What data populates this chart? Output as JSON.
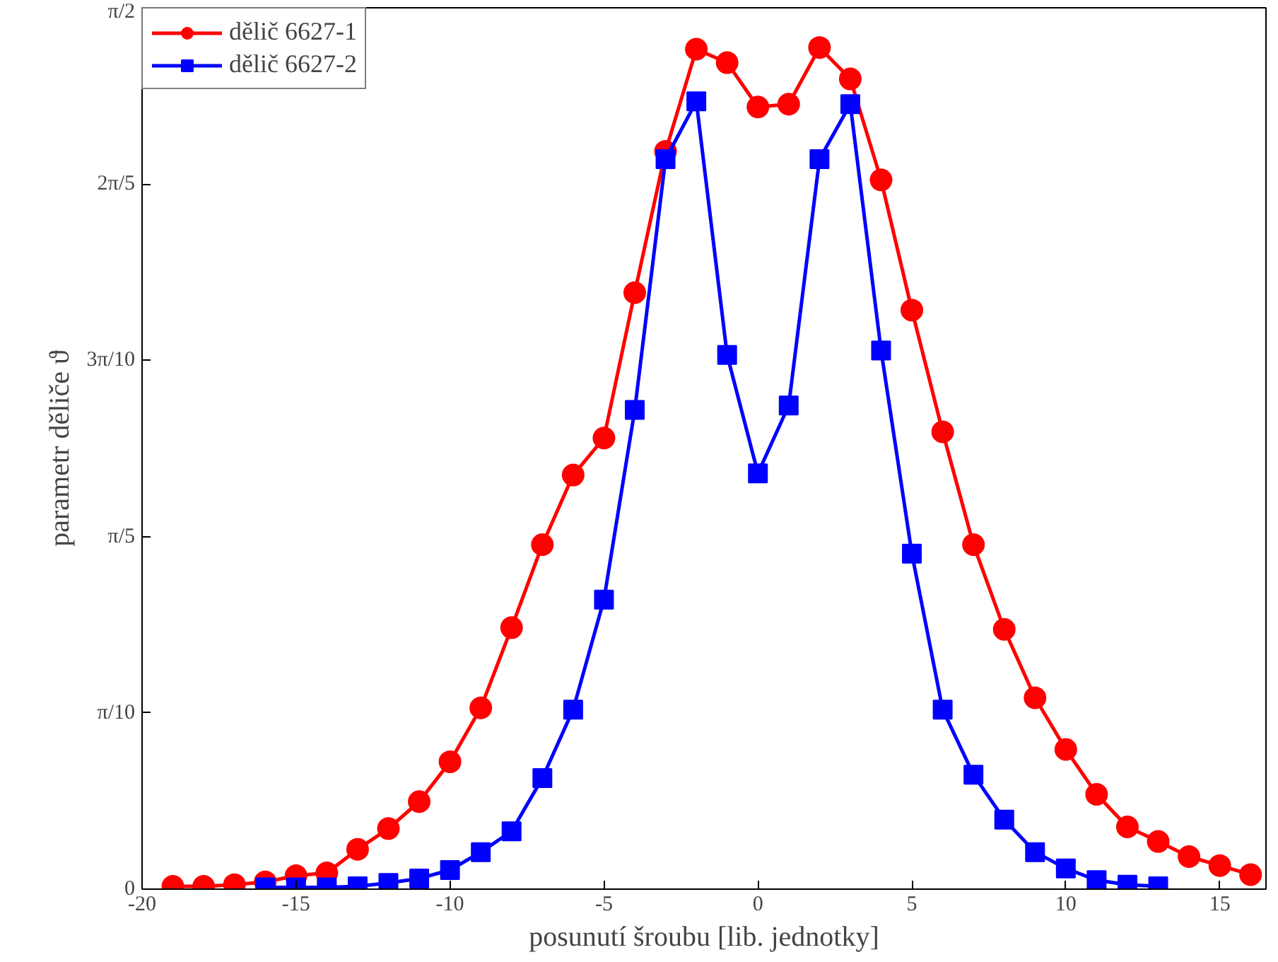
{
  "chart_data": {
    "type": "line",
    "xlabel": "posunutí šroubu [lib. jednotky]",
    "ylabel": "parametr děliče ϑ",
    "xlim": [
      -20,
      16.5
    ],
    "xticks": [
      -20,
      -15,
      -10,
      -5,
      0,
      5,
      10,
      15
    ],
    "ylim": [
      0,
      1.5708
    ],
    "yticks": [
      0,
      {
        "value": 0.31416,
        "label": "π/10"
      },
      {
        "value": 0.62832,
        "label": "π/5"
      },
      {
        "value": 0.94248,
        "label": "3π/10"
      },
      {
        "value": 1.25664,
        "label": "2π/5"
      },
      {
        "value": 1.5708,
        "label": "π/2"
      }
    ],
    "grid": false,
    "legend": "top left",
    "line_style": "solid",
    "series": [
      {
        "name": "dělič 6627-1",
        "color": "#ff0000",
        "marker": "circle",
        "x": [
          -19,
          -18,
          -17,
          -16,
          -15,
          -14,
          -13,
          -12,
          -11,
          -10,
          -9,
          -8,
          -7,
          -6,
          -5,
          -4,
          -3,
          -2,
          -1,
          0,
          1,
          2,
          3,
          4,
          5,
          6,
          7,
          8,
          9,
          10,
          11,
          12,
          13,
          14,
          15,
          16
        ],
        "values": [
          0.005,
          0.005,
          0.008,
          0.013,
          0.024,
          0.029,
          0.071,
          0.108,
          0.156,
          0.227,
          0.323,
          0.466,
          0.614,
          0.738,
          0.804,
          1.063,
          1.315,
          1.497,
          1.473,
          1.394,
          1.399,
          1.5,
          1.444,
          1.264,
          1.032,
          0.815,
          0.614,
          0.463,
          0.341,
          0.249,
          0.169,
          0.111,
          0.085,
          0.058,
          0.042,
          0.026
        ]
      },
      {
        "name": "dělič 6627-2",
        "color": "#0000ff",
        "marker": "square",
        "x": [
          -16,
          -15,
          -14,
          -13,
          -12,
          -11,
          -10,
          -9,
          -8,
          -7,
          -6,
          -5,
          -4,
          -3,
          -2,
          -1,
          0,
          1,
          2,
          3,
          4,
          5,
          6,
          7,
          8,
          9,
          10,
          11,
          12,
          13
        ],
        "values": [
          0.003,
          0.003,
          0.003,
          0.005,
          0.011,
          0.019,
          0.034,
          0.066,
          0.103,
          0.198,
          0.32,
          0.516,
          0.854,
          1.301,
          1.404,
          0.952,
          0.741,
          0.862,
          1.301,
          1.399,
          0.96,
          0.598,
          0.32,
          0.204,
          0.124,
          0.066,
          0.037,
          0.016,
          0.008,
          0.005
        ]
      }
    ]
  }
}
